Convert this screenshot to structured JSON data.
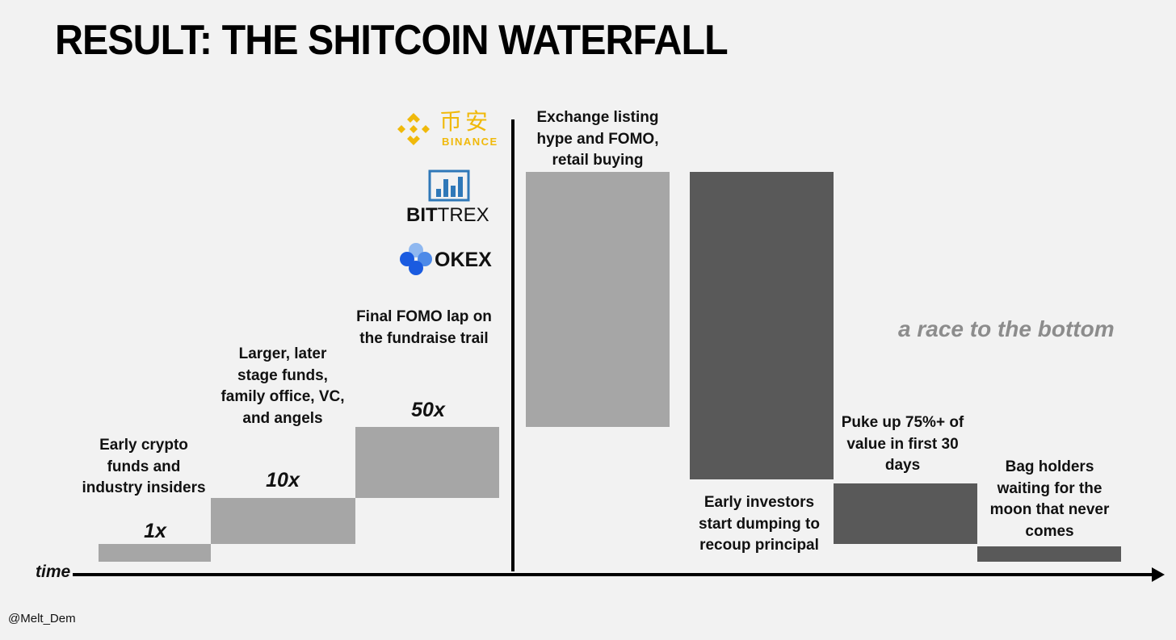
{
  "title": "RESULT: THE SHITCOIN WATERFALL",
  "logos": {
    "binance_chinese": "币安",
    "binance": "BINANCE",
    "bittrex_bold": "BIT",
    "bittrex_light": "TREX",
    "okex": "OKEX"
  },
  "stages": [
    {
      "label": "Early crypto funds and industry insiders",
      "multiple": "1x"
    },
    {
      "label": "Larger, later stage funds, family office, VC, and angels",
      "multiple": "10x"
    },
    {
      "label": "Final FOMO lap on the fundraise trail",
      "multiple": "50x"
    },
    {
      "label": "Exchange listing hype and FOMO, retail buying"
    },
    {
      "label": "Early investors start dumping to recoup principal"
    },
    {
      "label": "Puke up 75%+ of value in first 30 days"
    },
    {
      "label": "Bag holders waiting for the moon that never comes"
    }
  ],
  "annotation": "a race to the bottom",
  "axis_label": "time",
  "credit": "@Melt_Dem",
  "colors": {
    "background": "#f2f2f2",
    "rise": "#a6a6a6",
    "fall": "#595959",
    "binance": "#f0b90b",
    "bittrex": "#2f78b8",
    "okex": "#1a5be0"
  }
}
